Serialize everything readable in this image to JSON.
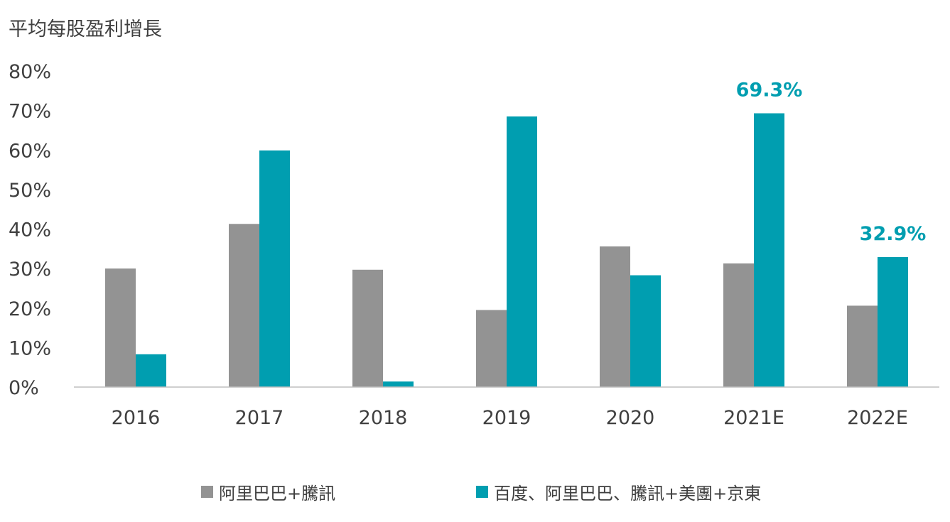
{
  "chart_data": {
    "type": "bar",
    "ylabel": "平均每股盈利增長",
    "categories": [
      "2016",
      "2017",
      "2018",
      "2019",
      "2020",
      "2021E",
      "2022E"
    ],
    "ylim": [
      0,
      80
    ],
    "yticks": [
      0,
      10,
      20,
      30,
      40,
      50,
      60,
      70,
      80
    ],
    "ytick_suffix": "%",
    "grid": false,
    "legend_position": "bottom",
    "series": [
      {
        "name": "阿里巴巴+騰訊",
        "color": "#939393",
        "values": [
          30.0,
          41.3,
          29.7,
          19.5,
          35.6,
          31.3,
          20.6
        ]
      },
      {
        "name": "百度、阿里巴巴、騰訊+美團+京東",
        "color": "#009eb0",
        "values": [
          8.3,
          59.9,
          1.4,
          68.5,
          28.3,
          69.3,
          32.9
        ]
      }
    ],
    "data_labels": [
      {
        "series": 1,
        "category": "2021E",
        "text": "69.3%"
      },
      {
        "series": 1,
        "category": "2022E",
        "text": "32.9%"
      }
    ]
  }
}
